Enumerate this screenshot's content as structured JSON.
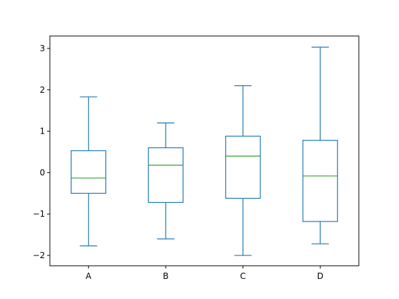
{
  "chart_data": {
    "type": "box",
    "title": "",
    "xlabel": "",
    "ylabel": "",
    "ylim": [
      -2.25,
      3.3
    ],
    "yticks": [
      {
        "value": -2,
        "label": "−2"
      },
      {
        "value": -1,
        "label": "−1"
      },
      {
        "value": 0,
        "label": "0"
      },
      {
        "value": 1,
        "label": "1"
      },
      {
        "value": 2,
        "label": "2"
      },
      {
        "value": 3,
        "label": "3"
      }
    ],
    "categories": [
      "A",
      "B",
      "C",
      "D"
    ],
    "boxes": [
      {
        "name": "A",
        "whisker_low": -1.77,
        "q1": -0.5,
        "median": -0.13,
        "q3": 0.53,
        "whisker_high": 1.83
      },
      {
        "name": "B",
        "whisker_low": -1.6,
        "q1": -0.72,
        "median": 0.18,
        "q3": 0.6,
        "whisker_high": 1.2
      },
      {
        "name": "C",
        "whisker_low": -2.0,
        "q1": -0.62,
        "median": 0.4,
        "q3": 0.88,
        "whisker_high": 2.1
      },
      {
        "name": "D",
        "whisker_low": -1.72,
        "q1": -1.18,
        "median": -0.08,
        "q3": 0.78,
        "whisker_high": 3.03
      }
    ],
    "grid": false,
    "colors": {
      "box": "#1f77b4",
      "median": "#2ca02c",
      "axes": "#000000"
    }
  }
}
